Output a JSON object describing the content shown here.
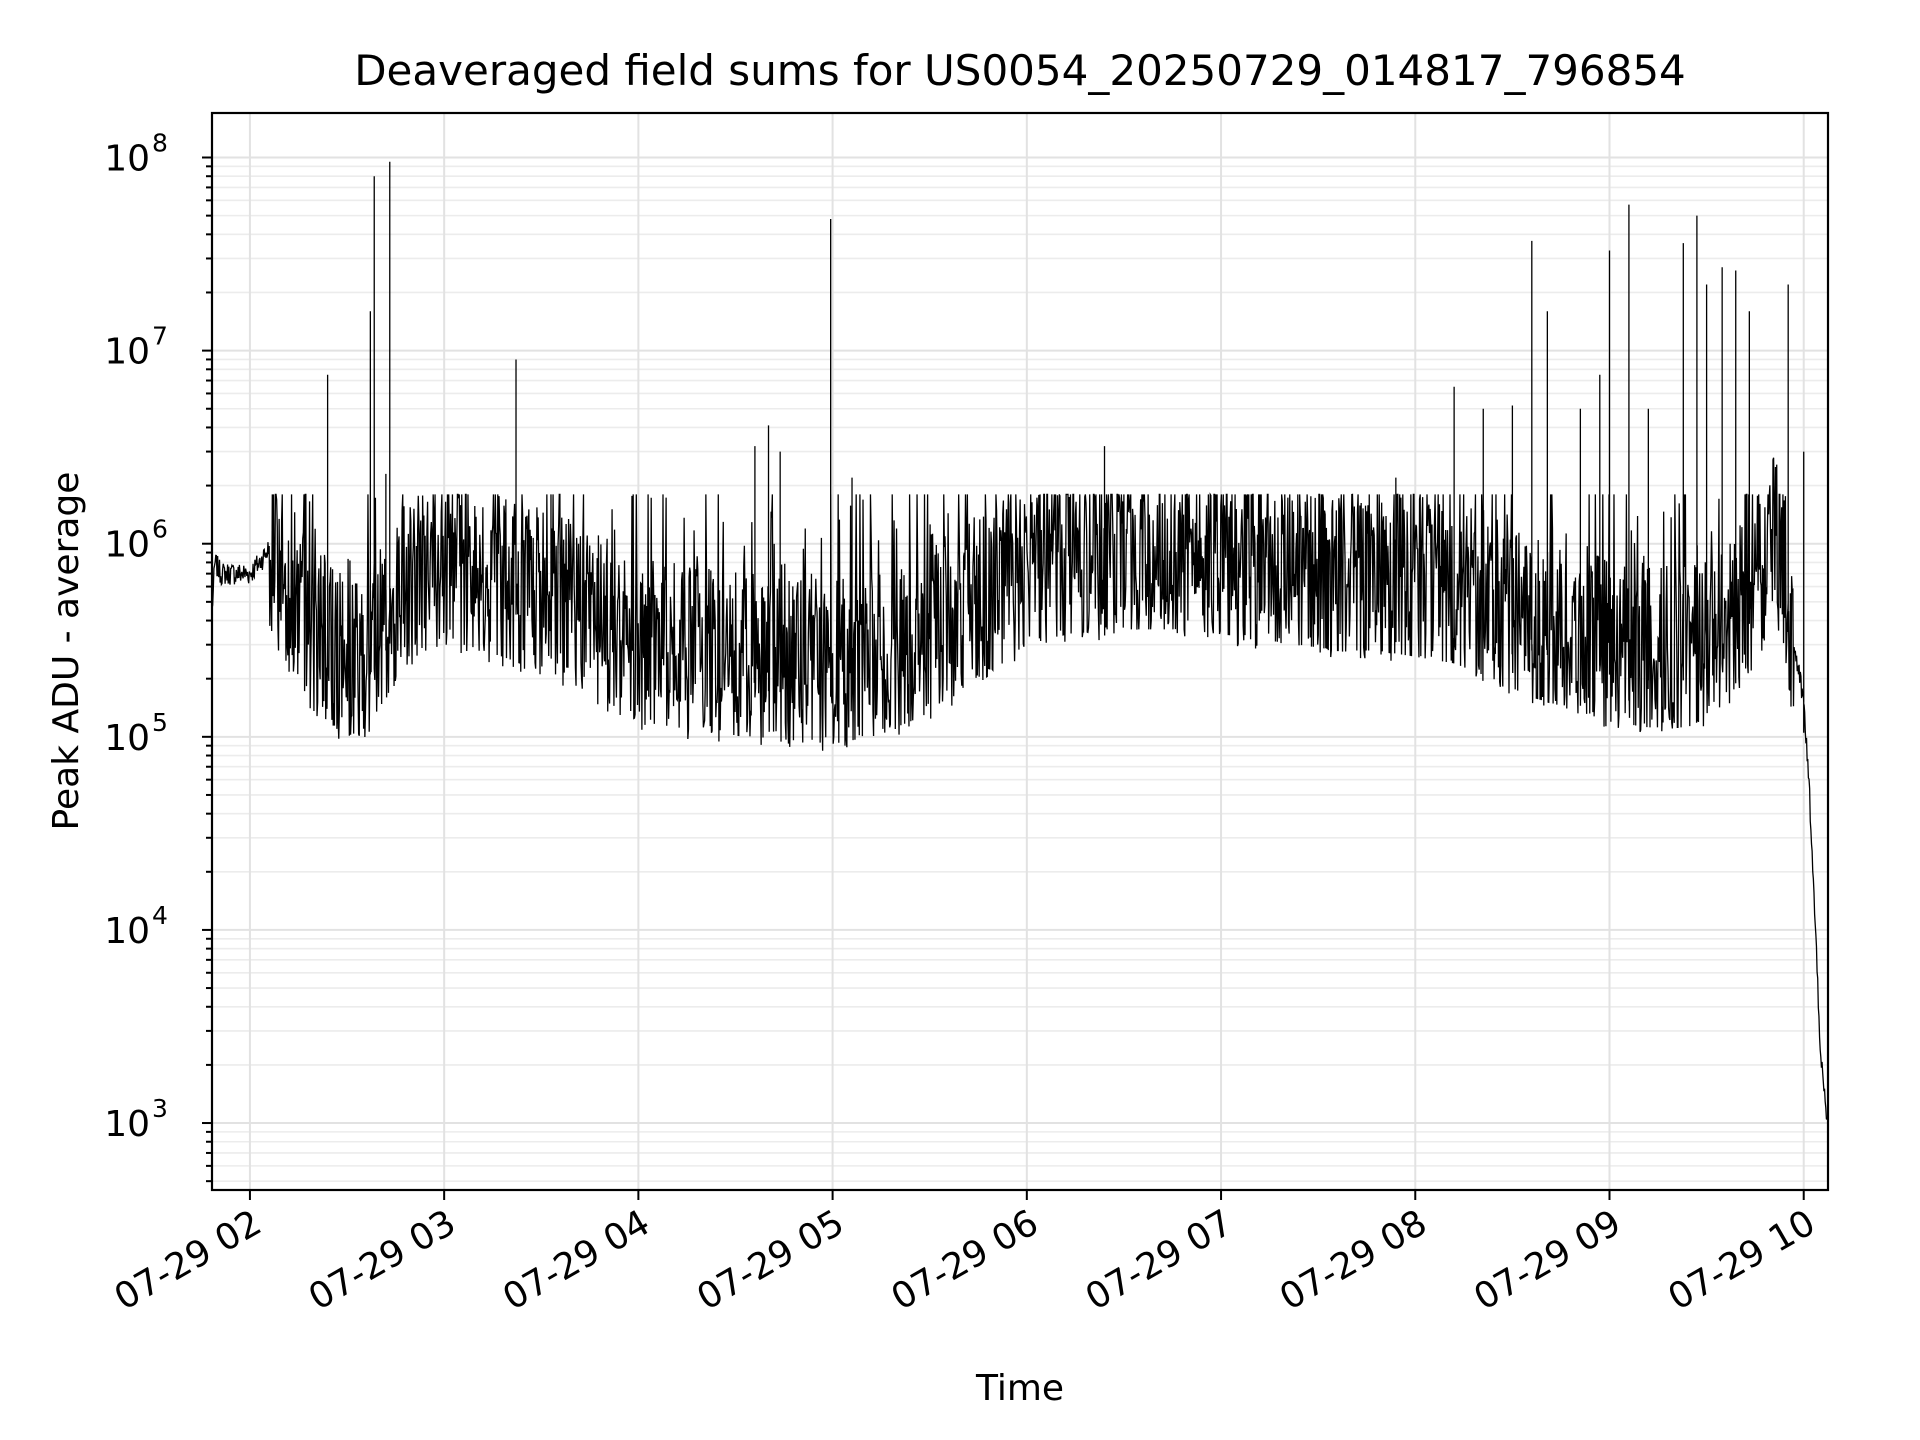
{
  "chart_data": {
    "type": "line",
    "title": "Deaveraged field sums for US0054_20250729_014817_796854",
    "xlabel": "Time",
    "ylabel": "Peak ADU - average",
    "xscale": "time",
    "yscale": "log",
    "xlim": [
      "2025-07-29 01:48:17",
      "2025-07-29 10:07:30"
    ],
    "ylim": [
      450,
      170000000
    ],
    "grid": "on (major and minor)",
    "legend": "none",
    "line_color": "#000000",
    "x_tick_labels": [
      "07-29 02",
      "07-29 03",
      "07-29 04",
      "07-29 05",
      "07-29 06",
      "07-29 07",
      "07-29 08",
      "07-29 09",
      "07-29 10"
    ],
    "y_tick_labels": [
      {
        "base": "10",
        "exp": "3"
      },
      {
        "base": "10",
        "exp": "4"
      },
      {
        "base": "10",
        "exp": "5"
      },
      {
        "base": "10",
        "exp": "6"
      },
      {
        "base": "10",
        "exp": "7"
      },
      {
        "base": "10",
        "exp": "8"
      }
    ],
    "series": [
      {
        "time_hours": [
          1.805,
          1.82,
          1.85,
          1.9,
          2.0,
          2.05,
          2.1,
          2.15,
          2.2,
          2.3,
          2.4,
          2.5,
          2.6,
          2.7,
          2.8,
          2.9,
          3.0,
          3.1,
          3.2,
          3.3,
          3.5,
          3.7,
          3.9,
          4.0,
          4.2,
          4.4,
          4.6,
          4.8,
          5.0,
          5.2,
          5.4,
          5.6,
          5.8,
          6.0,
          6.2,
          6.4,
          6.6,
          6.8,
          7.0,
          7.2,
          7.4,
          7.6,
          7.8,
          8.0,
          8.2,
          8.4,
          8.6,
          8.8,
          9.0,
          9.2,
          9.4,
          9.6,
          9.7,
          9.8,
          9.85,
          9.9,
          9.95,
          10.0,
          10.03,
          10.06,
          10.09,
          10.12
        ],
        "baseline": [
          450000,
          800000,
          700000,
          700000,
          700000,
          800000,
          950000,
          700000,
          600000,
          400000,
          300000,
          250000,
          280000,
          400000,
          600000,
          700000,
          750000,
          750000,
          700000,
          650000,
          550000,
          450000,
          350000,
          300000,
          280000,
          260000,
          250000,
          240000,
          230000,
          250000,
          300000,
          400000,
          550000,
          750000,
          850000,
          900000,
          900000,
          900000,
          850000,
          800000,
          750000,
          700000,
          700000,
          650000,
          600000,
          500000,
          400000,
          350000,
          300000,
          280000,
          280000,
          350000,
          500000,
          800000,
          1100000,
          700000,
          300000,
          150000,
          50000,
          10000,
          2000,
          1000
        ]
      }
    ],
    "spikes": [
      {
        "t": 2.4,
        "v": 7500000
      },
      {
        "t": 2.62,
        "v": 16000000
      },
      {
        "t": 2.64,
        "v": 80000000
      },
      {
        "t": 2.72,
        "v": 95000000
      },
      {
        "t": 2.7,
        "v": 2300000
      },
      {
        "t": 3.37,
        "v": 9000000
      },
      {
        "t": 3.55,
        "v": 1800000
      },
      {
        "t": 4.6,
        "v": 3200000
      },
      {
        "t": 4.67,
        "v": 4100000
      },
      {
        "t": 4.73,
        "v": 3000000
      },
      {
        "t": 4.99,
        "v": 48000000
      },
      {
        "t": 5.1,
        "v": 2200000
      },
      {
        "t": 6.4,
        "v": 3200000
      },
      {
        "t": 7.9,
        "v": 2200000
      },
      {
        "t": 8.2,
        "v": 6500000
      },
      {
        "t": 8.35,
        "v": 5000000
      },
      {
        "t": 8.5,
        "v": 5200000
      },
      {
        "t": 8.6,
        "v": 37000000
      },
      {
        "t": 8.68,
        "v": 16000000
      },
      {
        "t": 8.85,
        "v": 5000000
      },
      {
        "t": 8.95,
        "v": 7500000
      },
      {
        "t": 9.0,
        "v": 33000000
      },
      {
        "t": 9.1,
        "v": 57000000
      },
      {
        "t": 9.2,
        "v": 5000000
      },
      {
        "t": 9.38,
        "v": 36000000
      },
      {
        "t": 9.45,
        "v": 50000000
      },
      {
        "t": 9.5,
        "v": 22000000
      },
      {
        "t": 9.58,
        "v": 27000000
      },
      {
        "t": 9.65,
        "v": 26000000
      },
      {
        "t": 9.72,
        "v": 16000000
      },
      {
        "t": 9.92,
        "v": 22000000
      },
      {
        "t": 10.0,
        "v": 3000000
      }
    ]
  }
}
